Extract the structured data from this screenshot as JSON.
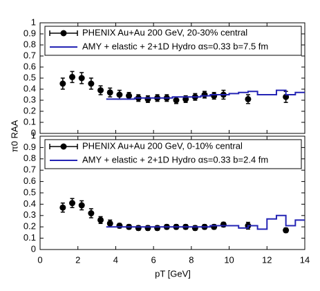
{
  "chart_data": [
    {
      "type": "scatter",
      "ylabel": "π0 RAA",
      "xlim": [
        0,
        14
      ],
      "xticks": [
        0,
        2,
        4,
        6,
        8,
        10,
        12,
        14
      ],
      "ylim": [
        0,
        1
      ],
      "yticks": [
        0,
        0.1,
        0.2,
        0.3,
        0.4,
        0.5,
        0.6,
        0.7,
        0.8,
        0.9,
        1
      ],
      "series": [
        {
          "name": "PHENIX Au+Au 200 GeV, 20-30% central",
          "color": "#000000",
          "style": "errorbar",
          "x": [
            1.2,
            1.7,
            2.2,
            2.7,
            3.2,
            3.7,
            4.2,
            4.7,
            5.2,
            5.7,
            6.2,
            6.7,
            7.2,
            7.7,
            8.2,
            8.7,
            9.2,
            9.7,
            11,
            13
          ],
          "values": [
            0.45,
            0.51,
            0.5,
            0.45,
            0.39,
            0.37,
            0.35,
            0.34,
            0.32,
            0.31,
            0.32,
            0.32,
            0.3,
            0.31,
            0.33,
            0.35,
            0.34,
            0.35,
            0.31,
            0.33
          ],
          "errors": [
            0.05,
            0.05,
            0.05,
            0.05,
            0.04,
            0.04,
            0.04,
            0.03,
            0.03,
            0.03,
            0.03,
            0.03,
            0.03,
            0.03,
            0.03,
            0.03,
            0.03,
            0.04,
            0.04,
            0.05
          ]
        },
        {
          "name": "AMY + elastic + 2+1D Hydro αs=0.33 b=7.5 fm",
          "color": "#2323b4",
          "style": "step",
          "x": [
            3.5,
            4,
            4.5,
            5,
            5.5,
            6,
            6.5,
            7,
            7.5,
            8,
            8.5,
            9,
            9.5,
            10,
            10.5,
            11,
            11.5,
            12,
            12.5,
            13,
            13.5
          ],
          "values": [
            0.31,
            0.31,
            0.31,
            0.32,
            0.32,
            0.32,
            0.32,
            0.33,
            0.33,
            0.33,
            0.34,
            0.35,
            0.35,
            0.36,
            0.37,
            0.38,
            0.35,
            0.35,
            0.39,
            0.35,
            0.37
          ]
        }
      ]
    },
    {
      "type": "scatter",
      "xlabel": "pT [GeV]",
      "xlim": [
        0,
        14
      ],
      "xticks": [
        0,
        2,
        4,
        6,
        8,
        10,
        12,
        14
      ],
      "ylim": [
        0,
        1
      ],
      "yticks": [
        0,
        0.1,
        0.2,
        0.3,
        0.4,
        0.5,
        0.6,
        0.7,
        0.8,
        0.9,
        1
      ],
      "series": [
        {
          "name": "PHENIX Au+Au 200 GeV, 0-10% central",
          "color": "#000000",
          "style": "errorbar",
          "x": [
            1.2,
            1.7,
            2.2,
            2.7,
            3.2,
            3.7,
            4.2,
            4.7,
            5.2,
            5.7,
            6.2,
            6.7,
            7.2,
            7.7,
            8.2,
            8.7,
            9.2,
            9.7,
            11,
            13
          ],
          "values": [
            0.37,
            0.41,
            0.39,
            0.32,
            0.26,
            0.23,
            0.21,
            0.2,
            0.19,
            0.19,
            0.19,
            0.2,
            0.2,
            0.2,
            0.19,
            0.2,
            0.2,
            0.22,
            0.21,
            0.17
          ],
          "errors": [
            0.04,
            0.04,
            0.04,
            0.04,
            0.03,
            0.03,
            0.02,
            0.02,
            0.02,
            0.02,
            0.02,
            0.02,
            0.02,
            0.02,
            0.02,
            0.02,
            0.02,
            0.02,
            0.03,
            0.02
          ]
        },
        {
          "name": "AMY + elastic + 2+1D Hydro αs=0.33 b=2.4 fm",
          "color": "#2323b4",
          "style": "step",
          "x": [
            3.5,
            4,
            4.5,
            5,
            5.5,
            6,
            6.5,
            7,
            7.5,
            8,
            8.5,
            9,
            9.5,
            10,
            10.5,
            11,
            11.5,
            12,
            12.5,
            13,
            13.5
          ],
          "values": [
            0.2,
            0.2,
            0.2,
            0.2,
            0.2,
            0.2,
            0.2,
            0.2,
            0.2,
            0.2,
            0.2,
            0.21,
            0.21,
            0.21,
            0.19,
            0.21,
            0.18,
            0.27,
            0.3,
            0.21,
            0.26
          ]
        }
      ]
    }
  ]
}
